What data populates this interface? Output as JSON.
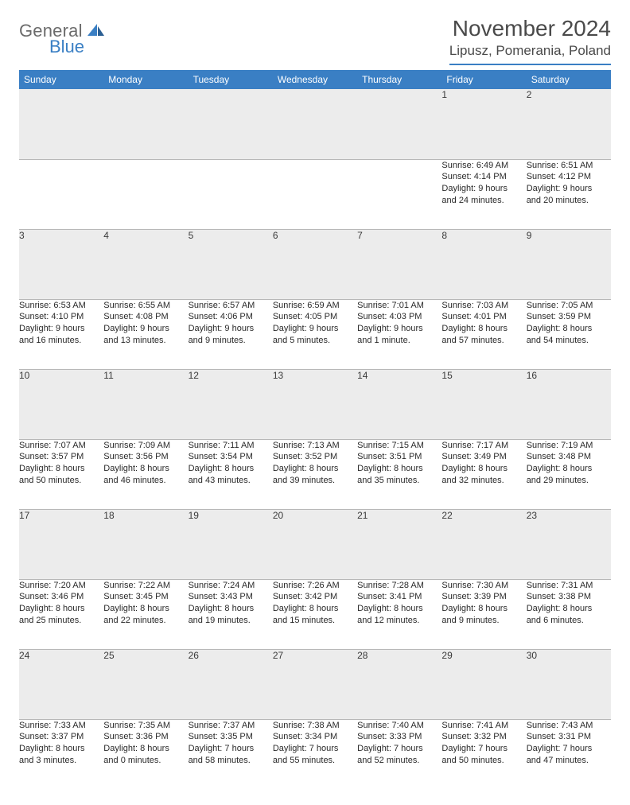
{
  "logo": {
    "general": "General",
    "blue": "Blue"
  },
  "header": {
    "month": "November 2024",
    "location": "Lipusz, Pomerania, Poland"
  },
  "colors": {
    "accent": "#3a7fc4",
    "header_text": "#ffffff",
    "daynum_bg": "#ececec",
    "border": "#b8b8b8"
  },
  "weekdays": [
    "Sunday",
    "Monday",
    "Tuesday",
    "Wednesday",
    "Thursday",
    "Friday",
    "Saturday"
  ],
  "weeks": [
    [
      {
        "n": "",
        "sr": "",
        "ss": "",
        "dl1": "",
        "dl2": ""
      },
      {
        "n": "",
        "sr": "",
        "ss": "",
        "dl1": "",
        "dl2": ""
      },
      {
        "n": "",
        "sr": "",
        "ss": "",
        "dl1": "",
        "dl2": ""
      },
      {
        "n": "",
        "sr": "",
        "ss": "",
        "dl1": "",
        "dl2": ""
      },
      {
        "n": "",
        "sr": "",
        "ss": "",
        "dl1": "",
        "dl2": ""
      },
      {
        "n": "1",
        "sr": "Sunrise: 6:49 AM",
        "ss": "Sunset: 4:14 PM",
        "dl1": "Daylight: 9 hours",
        "dl2": "and 24 minutes."
      },
      {
        "n": "2",
        "sr": "Sunrise: 6:51 AM",
        "ss": "Sunset: 4:12 PM",
        "dl1": "Daylight: 9 hours",
        "dl2": "and 20 minutes."
      }
    ],
    [
      {
        "n": "3",
        "sr": "Sunrise: 6:53 AM",
        "ss": "Sunset: 4:10 PM",
        "dl1": "Daylight: 9 hours",
        "dl2": "and 16 minutes."
      },
      {
        "n": "4",
        "sr": "Sunrise: 6:55 AM",
        "ss": "Sunset: 4:08 PM",
        "dl1": "Daylight: 9 hours",
        "dl2": "and 13 minutes."
      },
      {
        "n": "5",
        "sr": "Sunrise: 6:57 AM",
        "ss": "Sunset: 4:06 PM",
        "dl1": "Daylight: 9 hours",
        "dl2": "and 9 minutes."
      },
      {
        "n": "6",
        "sr": "Sunrise: 6:59 AM",
        "ss": "Sunset: 4:05 PM",
        "dl1": "Daylight: 9 hours",
        "dl2": "and 5 minutes."
      },
      {
        "n": "7",
        "sr": "Sunrise: 7:01 AM",
        "ss": "Sunset: 4:03 PM",
        "dl1": "Daylight: 9 hours",
        "dl2": "and 1 minute."
      },
      {
        "n": "8",
        "sr": "Sunrise: 7:03 AM",
        "ss": "Sunset: 4:01 PM",
        "dl1": "Daylight: 8 hours",
        "dl2": "and 57 minutes."
      },
      {
        "n": "9",
        "sr": "Sunrise: 7:05 AM",
        "ss": "Sunset: 3:59 PM",
        "dl1": "Daylight: 8 hours",
        "dl2": "and 54 minutes."
      }
    ],
    [
      {
        "n": "10",
        "sr": "Sunrise: 7:07 AM",
        "ss": "Sunset: 3:57 PM",
        "dl1": "Daylight: 8 hours",
        "dl2": "and 50 minutes."
      },
      {
        "n": "11",
        "sr": "Sunrise: 7:09 AM",
        "ss": "Sunset: 3:56 PM",
        "dl1": "Daylight: 8 hours",
        "dl2": "and 46 minutes."
      },
      {
        "n": "12",
        "sr": "Sunrise: 7:11 AM",
        "ss": "Sunset: 3:54 PM",
        "dl1": "Daylight: 8 hours",
        "dl2": "and 43 minutes."
      },
      {
        "n": "13",
        "sr": "Sunrise: 7:13 AM",
        "ss": "Sunset: 3:52 PM",
        "dl1": "Daylight: 8 hours",
        "dl2": "and 39 minutes."
      },
      {
        "n": "14",
        "sr": "Sunrise: 7:15 AM",
        "ss": "Sunset: 3:51 PM",
        "dl1": "Daylight: 8 hours",
        "dl2": "and 35 minutes."
      },
      {
        "n": "15",
        "sr": "Sunrise: 7:17 AM",
        "ss": "Sunset: 3:49 PM",
        "dl1": "Daylight: 8 hours",
        "dl2": "and 32 minutes."
      },
      {
        "n": "16",
        "sr": "Sunrise: 7:19 AM",
        "ss": "Sunset: 3:48 PM",
        "dl1": "Daylight: 8 hours",
        "dl2": "and 29 minutes."
      }
    ],
    [
      {
        "n": "17",
        "sr": "Sunrise: 7:20 AM",
        "ss": "Sunset: 3:46 PM",
        "dl1": "Daylight: 8 hours",
        "dl2": "and 25 minutes."
      },
      {
        "n": "18",
        "sr": "Sunrise: 7:22 AM",
        "ss": "Sunset: 3:45 PM",
        "dl1": "Daylight: 8 hours",
        "dl2": "and 22 minutes."
      },
      {
        "n": "19",
        "sr": "Sunrise: 7:24 AM",
        "ss": "Sunset: 3:43 PM",
        "dl1": "Daylight: 8 hours",
        "dl2": "and 19 minutes."
      },
      {
        "n": "20",
        "sr": "Sunrise: 7:26 AM",
        "ss": "Sunset: 3:42 PM",
        "dl1": "Daylight: 8 hours",
        "dl2": "and 15 minutes."
      },
      {
        "n": "21",
        "sr": "Sunrise: 7:28 AM",
        "ss": "Sunset: 3:41 PM",
        "dl1": "Daylight: 8 hours",
        "dl2": "and 12 minutes."
      },
      {
        "n": "22",
        "sr": "Sunrise: 7:30 AM",
        "ss": "Sunset: 3:39 PM",
        "dl1": "Daylight: 8 hours",
        "dl2": "and 9 minutes."
      },
      {
        "n": "23",
        "sr": "Sunrise: 7:31 AM",
        "ss": "Sunset: 3:38 PM",
        "dl1": "Daylight: 8 hours",
        "dl2": "and 6 minutes."
      }
    ],
    [
      {
        "n": "24",
        "sr": "Sunrise: 7:33 AM",
        "ss": "Sunset: 3:37 PM",
        "dl1": "Daylight: 8 hours",
        "dl2": "and 3 minutes."
      },
      {
        "n": "25",
        "sr": "Sunrise: 7:35 AM",
        "ss": "Sunset: 3:36 PM",
        "dl1": "Daylight: 8 hours",
        "dl2": "and 0 minutes."
      },
      {
        "n": "26",
        "sr": "Sunrise: 7:37 AM",
        "ss": "Sunset: 3:35 PM",
        "dl1": "Daylight: 7 hours",
        "dl2": "and 58 minutes."
      },
      {
        "n": "27",
        "sr": "Sunrise: 7:38 AM",
        "ss": "Sunset: 3:34 PM",
        "dl1": "Daylight: 7 hours",
        "dl2": "and 55 minutes."
      },
      {
        "n": "28",
        "sr": "Sunrise: 7:40 AM",
        "ss": "Sunset: 3:33 PM",
        "dl1": "Daylight: 7 hours",
        "dl2": "and 52 minutes."
      },
      {
        "n": "29",
        "sr": "Sunrise: 7:41 AM",
        "ss": "Sunset: 3:32 PM",
        "dl1": "Daylight: 7 hours",
        "dl2": "and 50 minutes."
      },
      {
        "n": "30",
        "sr": "Sunrise: 7:43 AM",
        "ss": "Sunset: 3:31 PM",
        "dl1": "Daylight: 7 hours",
        "dl2": "and 47 minutes."
      }
    ]
  ]
}
